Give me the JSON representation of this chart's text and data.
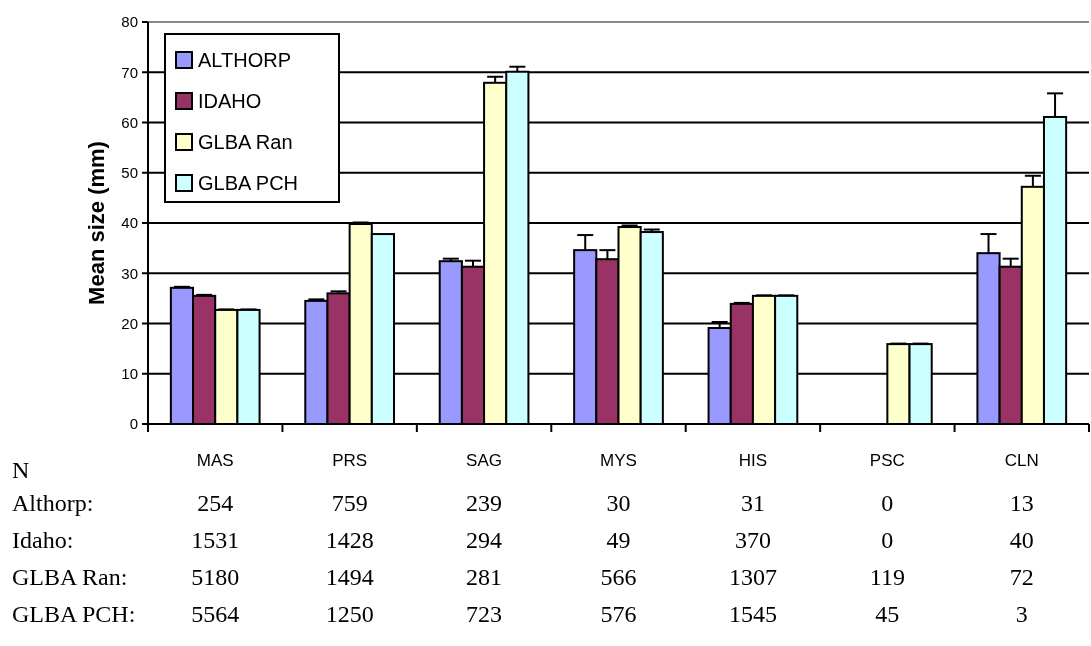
{
  "chart_data": {
    "type": "bar",
    "ylabel": "Mean size (mm)",
    "categories": [
      "MAS",
      "PRS",
      "SAG",
      "MYS",
      "HIS",
      "PSC",
      "CLN"
    ],
    "series": [
      {
        "name": "ALTHORP",
        "color": "#9999ff",
        "values": [
          27.1,
          24.5,
          32.4,
          34.6,
          19.1,
          null,
          34.0
        ],
        "errors": [
          0.2,
          0.3,
          0.5,
          3.0,
          1.2,
          null,
          3.8
        ]
      },
      {
        "name": "IDAHO",
        "color": "#993366",
        "values": [
          25.5,
          26.0,
          31.3,
          32.8,
          23.9,
          null,
          31.3
        ],
        "errors": [
          0.2,
          0.4,
          1.2,
          1.8,
          0.2,
          null,
          1.6
        ]
      },
      {
        "name": "GLBA Ran",
        "color": "#ffffcc",
        "values": [
          22.7,
          39.8,
          67.9,
          39.2,
          25.5,
          15.9,
          47.2
        ],
        "errors": [
          0.1,
          0.3,
          1.2,
          0.3,
          0.1,
          0.1,
          2.2
        ]
      },
      {
        "name": "GLBA PCH",
        "color": "#ccffff",
        "values": [
          22.7,
          37.8,
          70.1,
          38.2,
          25.5,
          15.9,
          61.1
        ],
        "errors": [
          0.1,
          null,
          1.0,
          0.5,
          0.1,
          0.1,
          4.7
        ]
      }
    ],
    "ylim": [
      0,
      80
    ],
    "yticks": [
      0,
      10,
      20,
      30,
      40,
      50,
      60,
      70,
      80
    ],
    "grid": "y",
    "legend": "top left",
    "annotations": [
      "N",
      "Althorp:",
      "254",
      "759",
      "239",
      "30",
      "31",
      "0",
      "13",
      "Idaho:",
      "1531",
      "1428",
      "294",
      "49",
      "370",
      "0",
      "40",
      "GLBA Ran:",
      "5180",
      "1494",
      "281",
      "566",
      "1307",
      "119",
      "72",
      "GLBA PCH:",
      "5564",
      "1250",
      "723",
      "576",
      "1545",
      "45",
      "3"
    ]
  }
}
